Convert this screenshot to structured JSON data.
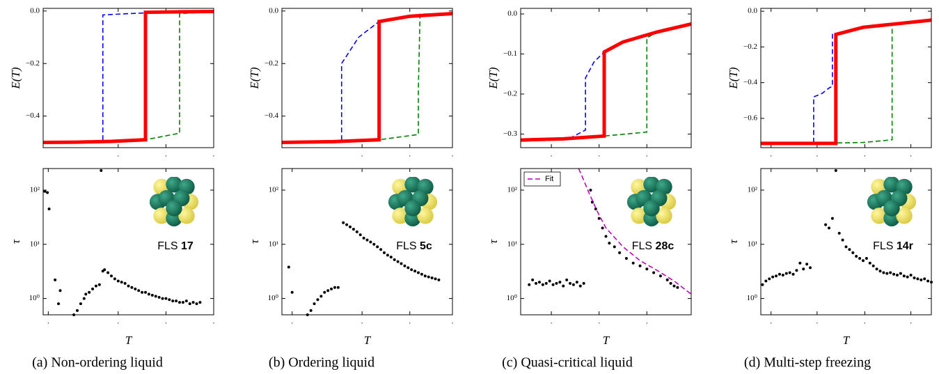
{
  "chart_data": [
    {
      "type": "line",
      "ylabel": "E(T)",
      "xlim": [
        0,
        1
      ],
      "ylim": [
        -0.52,
        0.01
      ],
      "xticks": [
        {
          "value": 0.44,
          "label": "."
        },
        {
          "value": 0.72,
          "label": "."
        },
        {
          "value": 1.0,
          "label": "."
        }
      ],
      "yticks": [
        {
          "value": 0,
          "label": "0.0"
        },
        {
          "value": -0.2,
          "label": "−0.2"
        },
        {
          "value": -0.4,
          "label": "−0.4"
        }
      ],
      "series": [
        {
          "color": "#0000ff",
          "dash": true,
          "width": 1.6,
          "x": [
            0,
            0.2,
            0.35,
            0.35,
            0.5,
            0.7,
            1
          ],
          "values": [
            -0.5,
            -0.499,
            -0.497,
            -0.015,
            -0.01,
            -0.005,
            -0.002
          ]
        },
        {
          "color": "#008000",
          "dash": true,
          "width": 1.6,
          "x": [
            0,
            0.2,
            0.4,
            0.6,
            0.8,
            0.8,
            1
          ],
          "values": [
            -0.5,
            -0.499,
            -0.496,
            -0.49,
            -0.465,
            -0.01,
            -0.003
          ]
        },
        {
          "color": "#ff0000",
          "dash": false,
          "width": 5,
          "x": [
            0,
            0.2,
            0.4,
            0.6,
            0.6,
            0.8,
            1
          ],
          "values": [
            -0.5,
            -0.499,
            -0.496,
            -0.49,
            -0.005,
            -0.003,
            -0.002
          ]
        }
      ]
    },
    {
      "type": "scatter",
      "ylabel": "τ",
      "xlabel": "T",
      "log": true,
      "xlim": [
        0,
        1
      ],
      "ylim": [
        0.5,
        250
      ],
      "color": "#000000",
      "xticks": [
        {
          "value": 0.03,
          "label": "."
        },
        {
          "value": 0.44,
          "label": "."
        },
        {
          "value": 0.72,
          "label": "."
        },
        {
          "value": 1.0,
          "label": "."
        }
      ],
      "yticks": [
        {
          "value": 1,
          "label": "10⁰"
        },
        {
          "value": 10,
          "label": "10¹"
        },
        {
          "value": 100,
          "label": "10²"
        }
      ],
      "annotation": "FLS",
      "annotation_id": "17",
      "caption": "(a)  Non-ordering liquid",
      "x": [
        0.01,
        0.025,
        0.035,
        0.07,
        0.09,
        0.1,
        0.18,
        0.2,
        0.22,
        0.24,
        0.25,
        0.27,
        0.29,
        0.31,
        0.33,
        0.34,
        0.35,
        0.36,
        0.38,
        0.4,
        0.42,
        0.44,
        0.46,
        0.48,
        0.5,
        0.52,
        0.54,
        0.56,
        0.58,
        0.6,
        0.62,
        0.64,
        0.66,
        0.68,
        0.7,
        0.72,
        0.74,
        0.76,
        0.78,
        0.8,
        0.82,
        0.84,
        0.86,
        0.88,
        0.9,
        0.92
      ],
      "values": [
        95,
        90,
        45,
        2.2,
        0.8,
        1.4,
        0.5,
        0.6,
        0.8,
        1.0,
        1.2,
        1.3,
        1.5,
        1.7,
        1.8,
        230,
        3.2,
        3.4,
        3.0,
        2.6,
        2.3,
        2.1,
        2.0,
        1.9,
        1.7,
        1.6,
        1.5,
        1.4,
        1.3,
        1.3,
        1.2,
        1.15,
        1.1,
        1.05,
        1.0,
        1.0,
        0.95,
        0.9,
        0.9,
        0.85,
        0.85,
        0.9,
        0.8,
        0.85,
        0.8,
        0.85
      ]
    },
    {
      "type": "line",
      "ylabel": "E(T)",
      "xlim": [
        0,
        1
      ],
      "ylim": [
        -0.52,
        0.01
      ],
      "xticks": [
        {
          "value": 0.47,
          "label": "."
        },
        {
          "value": 0.75,
          "label": "."
        },
        {
          "value": 1.0,
          "label": "."
        }
      ],
      "yticks": [
        {
          "value": 0,
          "label": "0.0"
        },
        {
          "value": -0.2,
          "label": "−0.2"
        },
        {
          "value": -0.4,
          "label": "−0.4"
        }
      ],
      "series": [
        {
          "color": "#0000ff",
          "dash": true,
          "width": 1.6,
          "x": [
            0,
            0.2,
            0.35,
            0.35,
            0.45,
            0.57,
            0.75,
            1
          ],
          "values": [
            -0.5,
            -0.499,
            -0.497,
            -0.2,
            -0.1,
            -0.04,
            -0.02,
            -0.01
          ]
        },
        {
          "color": "#008000",
          "dash": true,
          "width": 1.6,
          "x": [
            0,
            0.3,
            0.57,
            0.8,
            0.8,
            0.81,
            1
          ],
          "values": [
            -0.5,
            -0.497,
            -0.49,
            -0.47,
            -0.3,
            -0.012,
            -0.009
          ]
        },
        {
          "color": "#ff0000",
          "dash": false,
          "width": 5,
          "x": [
            0,
            0.3,
            0.57,
            0.57,
            0.75,
            1
          ],
          "values": [
            -0.5,
            -0.497,
            -0.49,
            -0.04,
            -0.02,
            -0.01
          ]
        }
      ]
    },
    {
      "type": "scatter",
      "ylabel": "τ",
      "xlabel": "T",
      "log": true,
      "xlim": [
        0,
        1
      ],
      "ylim": [
        0.5,
        250
      ],
      "color": "#000000",
      "xticks": [
        {
          "value": 0.06,
          "label": "."
        },
        {
          "value": 0.47,
          "label": "."
        },
        {
          "value": 0.75,
          "label": "."
        },
        {
          "value": 1.0,
          "label": "."
        }
      ],
      "yticks": [
        {
          "value": 1,
          "label": "10⁰"
        },
        {
          "value": 10,
          "label": "10¹"
        },
        {
          "value": 100,
          "label": "10²"
        }
      ],
      "annotation": "FLS",
      "annotation_id": "5c",
      "caption": "(b)  Ordering liquid",
      "x": [
        0.04,
        0.06,
        0.15,
        0.17,
        0.19,
        0.21,
        0.23,
        0.25,
        0.27,
        0.29,
        0.31,
        0.33,
        0.36,
        0.38,
        0.4,
        0.42,
        0.44,
        0.46,
        0.48,
        0.5,
        0.52,
        0.54,
        0.56,
        0.58,
        0.6,
        0.62,
        0.64,
        0.66,
        0.68,
        0.7,
        0.72,
        0.74,
        0.76,
        0.78,
        0.8,
        0.82,
        0.84,
        0.86,
        0.88,
        0.9,
        0.92
      ],
      "values": [
        3.8,
        1.3,
        0.5,
        0.6,
        0.8,
        0.95,
        1.1,
        1.3,
        1.4,
        1.5,
        1.6,
        1.6,
        25,
        23,
        21,
        19,
        17,
        15,
        13,
        12,
        11,
        10,
        9,
        8,
        7,
        6.3,
        5.8,
        5.2,
        4.8,
        4.4,
        4.0,
        3.7,
        3.4,
        3.2,
        3.0,
        2.8,
        2.6,
        2.5,
        2.4,
        2.3,
        2.2
      ]
    },
    {
      "type": "line",
      "ylabel": "E(T)",
      "xlim": [
        0,
        1
      ],
      "ylim": [
        -0.334,
        0.014
      ],
      "xticks": [
        {
          "value": 0.18,
          "label": "."
        },
        {
          "value": 0.46,
          "label": "."
        },
        {
          "value": 0.74,
          "label": "."
        }
      ],
      "yticks": [
        {
          "value": 0,
          "label": "0.0"
        },
        {
          "value": -0.1,
          "label": "−0.1"
        },
        {
          "value": -0.2,
          "label": "−0.2"
        },
        {
          "value": -0.3,
          "label": "−0.3"
        }
      ],
      "series": [
        {
          "color": "#0000ff",
          "dash": true,
          "width": 1.6,
          "x": [
            0.15,
            0.3,
            0.38,
            0.38,
            0.43,
            0.49,
            0.6,
            0.8,
            1
          ],
          "values": [
            -0.312,
            -0.308,
            -0.29,
            -0.16,
            -0.12,
            -0.095,
            -0.07,
            -0.045,
            -0.025
          ]
        },
        {
          "color": "#008000",
          "dash": true,
          "width": 1.6,
          "x": [
            0.09,
            0.3,
            0.49,
            0.74,
            0.74,
            0.8,
            1
          ],
          "values": [
            -0.313,
            -0.311,
            -0.305,
            -0.295,
            -0.06,
            -0.045,
            -0.025
          ]
        },
        {
          "color": "#ff0000",
          "dash": false,
          "width": 5,
          "x": [
            0,
            0.25,
            0.49,
            0.49,
            0.6,
            0.8,
            1
          ],
          "values": [
            -0.315,
            -0.312,
            -0.305,
            -0.095,
            -0.07,
            -0.045,
            -0.025
          ]
        }
      ]
    },
    {
      "type": "scatter",
      "ylabel": "τ",
      "xlabel": "T",
      "log": true,
      "xlim": [
        0,
        1
      ],
      "ylim": [
        0.5,
        250
      ],
      "color": "#000000",
      "legend": "upper left",
      "xticks": [
        {
          "value": 0.18,
          "label": "."
        },
        {
          "value": 0.46,
          "label": "."
        },
        {
          "value": 0.74,
          "label": "."
        }
      ],
      "yticks": [
        {
          "value": 1,
          "label": "10⁰"
        },
        {
          "value": 10,
          "label": "10¹"
        },
        {
          "value": 100,
          "label": "10²"
        }
      ],
      "annotation": "FLS",
      "annotation_id": "28c",
      "caption": "(c)  Quasi-critical liquid",
      "x": [
        0.05,
        0.07,
        0.09,
        0.11,
        0.13,
        0.15,
        0.17,
        0.19,
        0.21,
        0.23,
        0.25,
        0.27,
        0.29,
        0.31,
        0.33,
        0.35,
        0.37,
        0.41,
        0.42,
        0.44,
        0.46,
        0.48,
        0.5,
        0.52,
        0.55,
        0.58,
        0.62,
        0.66,
        0.7,
        0.74,
        0.78,
        0.82,
        0.86,
        0.88,
        0.9,
        0.92
      ],
      "values": [
        1.8,
        2.2,
        1.9,
        2.0,
        1.8,
        1.9,
        2.1,
        1.8,
        1.9,
        2.0,
        1.7,
        2.2,
        1.9,
        1.8,
        2.0,
        1.7,
        1.9,
        100,
        60,
        45,
        30,
        20,
        14,
        10.5,
        9,
        7,
        5.5,
        4.5,
        4,
        3.5,
        3,
        2.6,
        2.2,
        1.9,
        1.7,
        1.6
      ],
      "series": [
        {
          "name": "Fit",
          "color": "#bf00bf",
          "dash": true,
          "width": 1.6,
          "x": [
            0.34,
            0.36,
            0.4,
            0.45,
            0.5,
            0.6,
            0.7,
            0.8,
            0.9,
            1
          ],
          "values": [
            250,
            180,
            90,
            40,
            20,
            9,
            5,
            3.3,
            2.1,
            1.2
          ]
        }
      ]
    },
    {
      "type": "line",
      "ylabel": "E(T)",
      "xlim": [
        0,
        1
      ],
      "ylim": [
        -0.764,
        0.016
      ],
      "xticks": [
        {
          "value": 0.06,
          "label": "."
        },
        {
          "value": 0.33,
          "label": "."
        },
        {
          "value": 0.61,
          "label": "."
        },
        {
          "value": 0.88,
          "label": "."
        }
      ],
      "yticks": [
        {
          "value": 0,
          "label": "0.0"
        },
        {
          "value": -0.2,
          "label": "−0.2"
        },
        {
          "value": -0.4,
          "label": "−0.4"
        },
        {
          "value": -0.6,
          "label": "−0.6"
        }
      ],
      "series": [
        {
          "color": "#0000ff",
          "dash": true,
          "width": 1.6,
          "x": [
            0,
            0.2,
            0.31,
            0.31,
            0.36,
            0.4,
            0.42,
            0.42,
            0.6,
            1
          ],
          "values": [
            -0.74,
            -0.74,
            -0.74,
            -0.48,
            -0.46,
            -0.43,
            -0.42,
            -0.13,
            -0.09,
            -0.05
          ]
        },
        {
          "color": "#008000",
          "dash": true,
          "width": 1.6,
          "x": [
            0,
            0.3,
            0.6,
            0.77,
            0.77,
            0.8,
            1
          ],
          "values": [
            -0.74,
            -0.74,
            -0.735,
            -0.72,
            -0.08,
            -0.07,
            -0.05
          ]
        },
        {
          "color": "#ff0000",
          "dash": false,
          "width": 5,
          "x": [
            0,
            0.2,
            0.44,
            0.44,
            0.6,
            0.8,
            1
          ],
          "values": [
            -0.74,
            -0.74,
            -0.74,
            -0.13,
            -0.09,
            -0.07,
            -0.05
          ]
        }
      ]
    },
    {
      "type": "scatter",
      "ylabel": "τ",
      "xlabel": "T",
      "log": true,
      "xlim": [
        0,
        1
      ],
      "ylim": [
        0.5,
        250
      ],
      "color": "#000000",
      "xticks": [
        {
          "value": 0.06,
          "label": "."
        },
        {
          "value": 0.33,
          "label": "."
        },
        {
          "value": 0.61,
          "label": "."
        },
        {
          "value": 0.88,
          "label": "."
        }
      ],
      "yticks": [
        {
          "value": 1,
          "label": "10⁰"
        },
        {
          "value": 10,
          "label": "10¹"
        },
        {
          "value": 100,
          "label": "10²"
        }
      ],
      "annotation": "FLS",
      "annotation_id": "14r",
      "caption": "(d)  Multi-step freezing",
      "x": [
        0.01,
        0.03,
        0.05,
        0.07,
        0.09,
        0.11,
        0.13,
        0.15,
        0.17,
        0.19,
        0.21,
        0.23,
        0.25,
        0.27,
        0.29,
        0.38,
        0.4,
        0.42,
        0.44,
        0.46,
        0.48,
        0.5,
        0.52,
        0.54,
        0.56,
        0.58,
        0.6,
        0.62,
        0.64,
        0.66,
        0.68,
        0.7,
        0.72,
        0.74,
        0.76,
        0.78,
        0.8,
        0.82,
        0.84,
        0.86,
        0.88,
        0.9,
        0.92,
        0.94,
        0.96,
        0.98,
        1.0
      ],
      "values": [
        1.8,
        2.1,
        2.3,
        2.5,
        2.6,
        2.8,
        2.7,
        2.9,
        3.0,
        2.8,
        3.3,
        4.5,
        3.5,
        4.3,
        3.7,
        23,
        20,
        30,
        230,
        16,
        12,
        9,
        8,
        7,
        6,
        5.5,
        5,
        5.5,
        4.5,
        4,
        3.5,
        3.2,
        3,
        2.9,
        3.0,
        2.8,
        2.7,
        2.9,
        2.6,
        2.5,
        2.7,
        2.4,
        2.3,
        2.2,
        2.3,
        2.1,
        2.0
      ]
    }
  ]
}
